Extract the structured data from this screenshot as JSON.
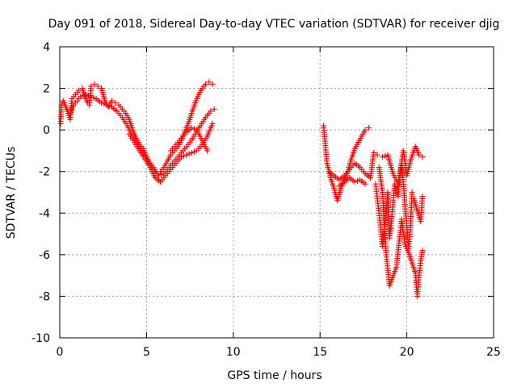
{
  "chart_data": {
    "type": "scatter",
    "title": "Day 091 of 2018, Sidereal Day-to-day VTEC variation (SDTVAR) for receiver djig",
    "xlabel": "GPS time / hours",
    "ylabel": "SDTVAR / TECUs",
    "xlim": [
      0,
      25
    ],
    "ylim": [
      -10,
      4
    ],
    "xticks": [
      0,
      5,
      10,
      15,
      20,
      25
    ],
    "yticks": [
      -10,
      -8,
      -6,
      -4,
      -2,
      0,
      2,
      4
    ],
    "grid": true,
    "marker": "+",
    "color": "#ff0000",
    "segments": [
      [
        [
          0.05,
          0.3
        ],
        [
          0.1,
          1.2
        ],
        [
          0.2,
          1.4
        ],
        [
          0.4,
          1.0
        ],
        [
          0.6,
          0.5
        ],
        [
          0.7,
          1.5
        ],
        [
          0.9,
          1.7
        ],
        [
          1.1,
          1.9
        ],
        [
          1.3,
          2.0
        ],
        [
          1.5,
          1.5
        ],
        [
          1.6,
          1.3
        ],
        [
          1.7,
          1.2
        ],
        [
          1.8,
          2.1
        ],
        [
          2.0,
          2.2
        ],
        [
          2.2,
          2.1
        ],
        [
          2.4,
          2.0
        ],
        [
          2.6,
          1.4
        ],
        [
          2.8,
          1.1
        ],
        [
          3.0,
          1.4
        ],
        [
          3.2,
          1.3
        ],
        [
          3.4,
          1.2
        ],
        [
          3.6,
          1.0
        ],
        [
          3.8,
          0.8
        ],
        [
          4.0,
          0.5
        ],
        [
          4.2,
          0.0
        ],
        [
          4.4,
          -0.4
        ],
        [
          4.6,
          -0.7
        ],
        [
          4.8,
          -0.9
        ],
        [
          5.0,
          -1.3
        ],
        [
          5.2,
          -1.6
        ],
        [
          5.4,
          -1.8
        ],
        [
          5.6,
          -2.1
        ],
        [
          5.8,
          -2.0
        ],
        [
          6.0,
          -1.8
        ],
        [
          6.2,
          -1.5
        ],
        [
          6.4,
          -1.2
        ],
        [
          6.6,
          -1.0
        ],
        [
          6.8,
          -0.8
        ],
        [
          7.0,
          -0.5
        ],
        [
          7.2,
          -0.1
        ],
        [
          7.4,
          0.3
        ],
        [
          7.6,
          0.8
        ],
        [
          7.8,
          1.3
        ],
        [
          8.0,
          1.7
        ],
        [
          8.2,
          2.0
        ],
        [
          8.4,
          2.2
        ],
        [
          8.6,
          2.3
        ],
        [
          8.8,
          2.2
        ]
      ],
      [
        [
          0.6,
          0.8
        ],
        [
          0.8,
          1.2
        ],
        [
          1.0,
          1.4
        ],
        [
          1.2,
          1.6
        ],
        [
          1.5,
          1.7
        ],
        [
          1.8,
          1.6
        ],
        [
          2.1,
          1.5
        ],
        [
          2.4,
          1.3
        ],
        [
          2.7,
          1.2
        ],
        [
          3.0,
          1.1
        ],
        [
          3.3,
          0.9
        ],
        [
          3.6,
          0.6
        ],
        [
          3.9,
          0.2
        ],
        [
          4.2,
          -0.3
        ],
        [
          4.5,
          -0.7
        ],
        [
          4.8,
          -1.1
        ],
        [
          5.1,
          -1.5
        ],
        [
          5.4,
          -1.9
        ],
        [
          5.7,
          -2.2
        ],
        [
          6.0,
          -2.1
        ],
        [
          6.3,
          -1.8
        ],
        [
          6.6,
          -1.5
        ],
        [
          6.9,
          -1.2
        ],
        [
          7.2,
          -0.9
        ],
        [
          7.5,
          -0.6
        ],
        [
          7.8,
          -0.2
        ],
        [
          8.1,
          0.2
        ],
        [
          8.4,
          0.6
        ],
        [
          8.7,
          0.9
        ],
        [
          8.9,
          1.0
        ]
      ],
      [
        [
          4.0,
          -0.2
        ],
        [
          4.3,
          -0.6
        ],
        [
          4.6,
          -1.0
        ],
        [
          4.9,
          -1.4
        ],
        [
          5.2,
          -1.8
        ],
        [
          5.5,
          -2.3
        ],
        [
          5.8,
          -2.5
        ],
        [
          6.1,
          -2.2
        ],
        [
          6.4,
          -1.9
        ],
        [
          6.7,
          -1.6
        ],
        [
          7.0,
          -1.3
        ],
        [
          7.3,
          -1.2
        ],
        [
          7.6,
          -1.1
        ],
        [
          7.9,
          -1.0
        ],
        [
          8.2,
          -0.7
        ],
        [
          8.5,
          -0.3
        ],
        [
          8.8,
          0.3
        ]
      ],
      [
        [
          6.4,
          -1.0
        ],
        [
          6.7,
          -0.7
        ],
        [
          7.0,
          -0.4
        ],
        [
          7.3,
          -0.1
        ],
        [
          7.6,
          0.1
        ],
        [
          7.9,
          0.0
        ],
        [
          8.2,
          -0.5
        ],
        [
          8.5,
          -1.0
        ]
      ],
      [
        [
          15.2,
          0.2
        ],
        [
          15.4,
          -1.6
        ],
        [
          15.6,
          -2.3
        ],
        [
          15.8,
          -2.8
        ],
        [
          16.0,
          -3.4
        ],
        [
          16.2,
          -2.8
        ],
        [
          16.4,
          -2.4
        ],
        [
          16.6,
          -2.0
        ],
        [
          16.8,
          -1.4
        ],
        [
          17.0,
          -0.9
        ],
        [
          17.2,
          -0.6
        ],
        [
          17.4,
          -0.3
        ],
        [
          17.6,
          0.0
        ],
        [
          17.8,
          0.1
        ]
      ],
      [
        [
          15.5,
          -2.0
        ],
        [
          15.8,
          -2.2
        ],
        [
          16.1,
          -2.4
        ],
        [
          16.4,
          -2.2
        ],
        [
          16.7,
          -1.9
        ],
        [
          17.0,
          -1.6
        ],
        [
          17.3,
          -1.8
        ],
        [
          17.6,
          -2.1
        ],
        [
          17.9,
          -2.3
        ],
        [
          18.1,
          -1.1
        ],
        [
          18.3,
          -1.2
        ]
      ],
      [
        [
          16.1,
          -2.7
        ],
        [
          16.4,
          -2.5
        ],
        [
          16.7,
          -2.3
        ],
        [
          17.0,
          -2.5
        ],
        [
          17.3,
          -2.4
        ],
        [
          17.6,
          -2.6
        ]
      ],
      [
        [
          18.2,
          -2.6
        ],
        [
          18.3,
          -3.3
        ],
        [
          18.4,
          -4.0
        ],
        [
          18.5,
          -4.8
        ],
        [
          18.6,
          -5.6
        ],
        [
          18.7,
          -5.0
        ],
        [
          18.8,
          -4.1
        ],
        [
          18.9,
          -3.0
        ],
        [
          19.0,
          -5.2
        ],
        [
          19.1,
          -4.5
        ],
        [
          19.2,
          -3.6
        ],
        [
          19.3,
          -2.6
        ],
        [
          19.5,
          -3.2
        ],
        [
          19.6,
          -2.3
        ],
        [
          19.7,
          -1.6
        ],
        [
          19.8,
          -2.5
        ],
        [
          19.9,
          -3.8
        ],
        [
          20.0,
          -4.6
        ],
        [
          20.1,
          -5.7
        ],
        [
          20.2,
          -4.8
        ],
        [
          20.3,
          -3.0
        ]
      ],
      [
        [
          18.4,
          -1.8
        ],
        [
          18.6,
          -3.0
        ],
        [
          18.8,
          -5.9
        ],
        [
          19.0,
          -7.5
        ],
        [
          19.4,
          -6.6
        ],
        [
          19.7,
          -4.3
        ],
        [
          19.9,
          -5.5
        ],
        [
          20.1,
          -5.9
        ],
        [
          20.5,
          -6.9
        ],
        [
          20.6,
          -8.0
        ],
        [
          20.7,
          -7.1
        ],
        [
          20.8,
          -6.3
        ],
        [
          20.9,
          -5.8
        ]
      ],
      [
        [
          18.6,
          -1.3
        ],
        [
          18.9,
          -1.2
        ],
        [
          19.2,
          -2.1
        ],
        [
          19.5,
          -2.6
        ],
        [
          19.8,
          -1.0
        ],
        [
          20.0,
          -2.2
        ],
        [
          20.2,
          -1.5
        ],
        [
          20.4,
          -1.0
        ],
        [
          20.5,
          -0.8
        ],
        [
          20.7,
          -1.2
        ],
        [
          20.9,
          -1.3
        ]
      ],
      [
        [
          20.4,
          -3.3
        ],
        [
          20.6,
          -3.9
        ],
        [
          20.8,
          -4.4
        ],
        [
          20.9,
          -3.2
        ]
      ]
    ]
  }
}
